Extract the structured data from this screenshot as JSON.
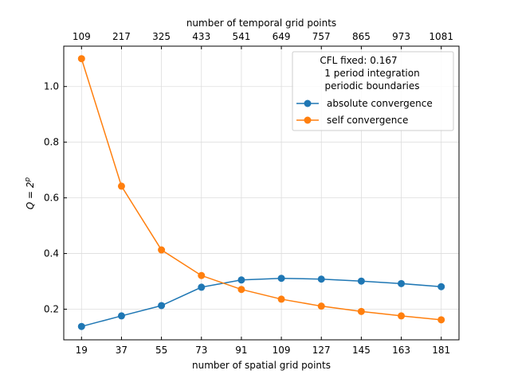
{
  "chart_data": {
    "type": "line",
    "x": [
      19,
      37,
      55,
      73,
      91,
      109,
      127,
      145,
      163,
      181
    ],
    "xlabel": "number of spatial grid points",
    "x2label": "number of temporal grid points",
    "x2ticks": [
      "109",
      "217",
      "325",
      "433",
      "541",
      "649",
      "757",
      "865",
      "973",
      "1081"
    ],
    "ylabel_prefix": "Q = 2",
    "ylabel_sup": "p",
    "yticks": [
      0.2,
      0.4,
      0.6,
      0.8,
      1.0
    ],
    "ylim": [
      0.09,
      1.145
    ],
    "xlim": [
      11,
      189
    ],
    "grid": true,
    "legend": {
      "placement": "top-right",
      "title_lines": [
        "CFL fixed: 0.167",
        "1 period integration",
        "periodic boundaries"
      ]
    },
    "series": [
      {
        "name": "absolute convergence",
        "color": "#1f77b4",
        "values": [
          0.138,
          0.176,
          0.213,
          0.279,
          0.305,
          0.311,
          0.308,
          0.301,
          0.292,
          0.281
        ]
      },
      {
        "name": "self convergence",
        "color": "#ff7f0e",
        "values": [
          1.1,
          0.642,
          0.413,
          0.321,
          0.271,
          0.236,
          0.211,
          0.192,
          0.176,
          0.162
        ]
      }
    ]
  }
}
